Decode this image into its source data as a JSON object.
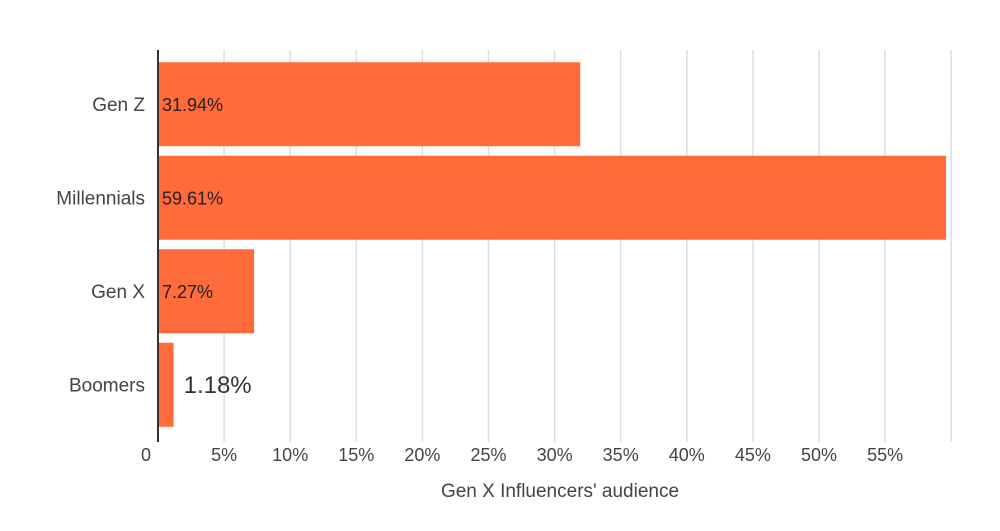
{
  "chart_data": {
    "type": "bar",
    "orientation": "horizontal",
    "categories": [
      "Gen Z",
      "Millennials",
      "Gen X",
      "Boomers"
    ],
    "values": [
      31.94,
      59.61,
      7.27,
      1.18
    ],
    "data_labels": [
      "31.94%",
      "59.61%",
      "7.27%",
      "1.18%"
    ],
    "xlabel": "Gen X Influencers' audience",
    "ylabel": "",
    "xlim": [
      0,
      60
    ],
    "xticks": [
      0,
      5,
      10,
      15,
      20,
      25,
      30,
      35,
      40,
      45,
      50,
      55
    ],
    "xtick_labels": [
      "0",
      "5%",
      "10%",
      "15%",
      "20%",
      "25%",
      "30%",
      "35%",
      "40%",
      "45%",
      "50%",
      "55%"
    ],
    "grid": true,
    "legend": "none",
    "colors": {
      "bar": "#ff6b3b",
      "grid": "#dddddd",
      "axis": "#333333",
      "text": "#444444",
      "label_inside": "#222222"
    }
  }
}
